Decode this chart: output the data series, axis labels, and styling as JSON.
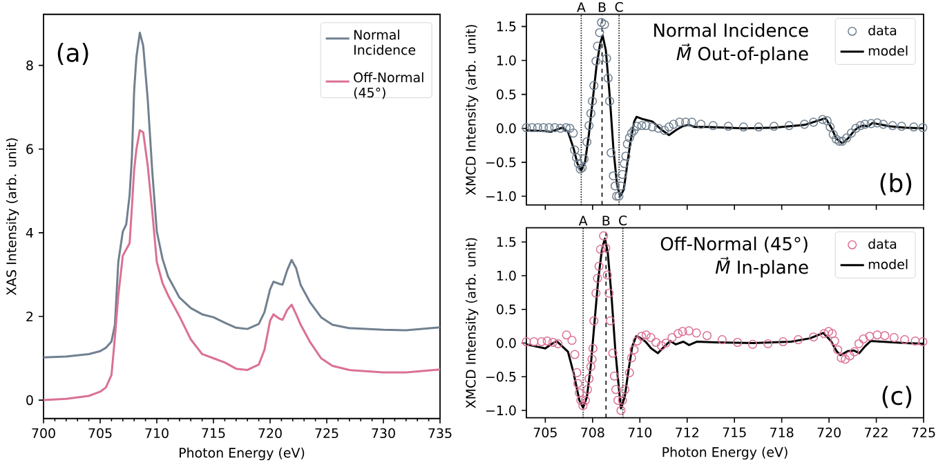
{
  "chart_data": [
    {
      "type": "line",
      "xlabel": "Photon Energy (eV)",
      "ylabel": "XAS Intensity (arb. unit)",
      "annotations": [
        "(a)"
      ],
      "x": [
        700,
        702,
        704,
        705,
        705.5,
        706,
        706.3,
        706.6,
        707,
        707.3,
        707.6,
        707.8,
        708,
        708.2,
        708.5,
        708.8,
        709.2,
        709.6,
        710,
        710.5,
        711,
        712,
        713,
        714,
        715,
        716,
        717,
        718,
        719,
        719.5,
        720,
        720.3,
        720.8,
        721.1,
        721.5,
        721.9,
        722.3,
        722.7,
        723.5,
        724.5,
        725.5,
        727,
        730,
        732,
        735
      ],
      "series": [
        {
          "name": "Normal Incidence",
          "color": "#708090",
          "values": [
            1.02,
            1.04,
            1.1,
            1.17,
            1.25,
            1.4,
            1.8,
            3.3,
            4.03,
            4.2,
            4.9,
            5.8,
            7.4,
            8.2,
            8.78,
            8.47,
            7.18,
            5.46,
            4.03,
            3.38,
            2.95,
            2.45,
            2.2,
            2.05,
            1.98,
            1.85,
            1.73,
            1.7,
            1.82,
            2.1,
            2.65,
            2.83,
            2.78,
            2.76,
            3.1,
            3.35,
            3.15,
            2.75,
            2.35,
            1.98,
            1.8,
            1.72,
            1.68,
            1.67,
            1.74
          ]
        },
        {
          "name": "Off-Normal (45°)",
          "color": "#db7093",
          "values": [
            0.0,
            0.03,
            0.1,
            0.2,
            0.3,
            0.6,
            1.5,
            2.5,
            3.45,
            3.6,
            3.75,
            4.6,
            5.5,
            6.0,
            6.45,
            6.4,
            5.6,
            4.5,
            3.3,
            2.8,
            2.5,
            2.0,
            1.45,
            1.1,
            1.0,
            0.9,
            0.75,
            0.72,
            0.85,
            1.2,
            1.9,
            2.05,
            1.95,
            1.92,
            2.15,
            2.28,
            2.05,
            1.8,
            1.4,
            1.0,
            0.82,
            0.72,
            0.66,
            0.66,
            0.73
          ]
        }
      ],
      "xlim": [
        700,
        735
      ],
      "xticks": [
        700,
        705,
        710,
        715,
        720,
        725,
        730,
        735
      ],
      "ylim": [
        -0.44,
        9.22
      ],
      "yticks": [
        0,
        2,
        4,
        6,
        8
      ],
      "legend": "top right"
    },
    {
      "type": "line",
      "title": "Normal Incidence",
      "subtitle": "*M⃗* Out-of-plane",
      "ylabel": "XMCD Intensity (arb. unit)",
      "annotations": [
        "(b)"
      ],
      "tick_labels": "y",
      "series": [
        {
          "name": "data",
          "type": "scatter",
          "marker": "circle",
          "color": "#708090",
          "x": [
            704.0,
            704.3,
            704.6,
            704.9,
            705.2,
            705.5,
            705.8,
            706.1,
            706.3,
            706.48,
            706.55,
            706.65,
            706.75,
            706.85,
            706.95,
            707.05,
            707.2,
            707.31,
            707.41,
            707.49,
            707.57,
            707.68,
            707.76,
            707.87,
            707.97,
            708.13,
            708.24,
            708.32,
            708.4,
            708.48,
            708.6,
            708.69,
            708.77,
            708.89,
            709.0,
            709.08,
            709.18,
            709.26,
            709.34,
            709.45,
            709.56,
            709.69,
            709.85,
            710.1,
            710.33,
            710.66,
            710.98,
            711.3,
            711.54,
            711.78,
            712.1,
            712.42,
            712.75,
            713.23,
            713.87,
            714.68,
            715.48,
            716.28,
            717.09,
            717.89,
            718.7,
            719.18,
            719.66,
            719.9,
            720.06,
            720.22,
            720.38,
            720.54,
            720.7,
            720.94,
            721.18,
            721.42,
            721.66,
            721.9,
            722.23,
            722.55,
            722.87,
            723.36,
            723.84,
            724.48,
            724.96
          ],
          "values": [
            0.01,
            0.01,
            0.01,
            0.01,
            0.01,
            0.01,
            0.0,
            0.01,
            0.0,
            -0.07,
            -0.32,
            -0.43,
            -0.52,
            -0.6,
            -0.58,
            -0.45,
            -0.2,
            0.04,
            0.22,
            0.4,
            0.63,
            0.99,
            1.21,
            1.41,
            1.56,
            1.53,
            1.03,
            0.74,
            0.4,
            -0.36,
            -0.7,
            -0.85,
            -1.0,
            -1.0,
            -0.85,
            -0.68,
            -0.52,
            -0.41,
            -0.23,
            -0.14,
            -0.07,
            -0.03,
            0.03,
            0.04,
            0.04,
            0.02,
            0.0,
            -0.03,
            0.02,
            0.06,
            0.09,
            0.09,
            0.09,
            0.06,
            0.04,
            0.03,
            0.02,
            0.02,
            0.03,
            0.04,
            0.06,
            0.09,
            0.13,
            0.11,
            0.02,
            -0.09,
            -0.16,
            -0.19,
            -0.19,
            -0.14,
            -0.07,
            0.0,
            0.04,
            0.06,
            0.07,
            0.08,
            0.06,
            0.04,
            0.03,
            0.02,
            0.01
          ]
        },
        {
          "name": "model",
          "type": "line",
          "marker": "none",
          "color": "#000000",
          "x": [
            704.0,
            705.0,
            705.3,
            705.6,
            705.9,
            706.2,
            706.5,
            706.7,
            706.9,
            707.1,
            707.3,
            707.5,
            707.7,
            707.9,
            708.03,
            708.2,
            708.4,
            708.6,
            708.8,
            708.97,
            709.15,
            709.3,
            709.5,
            709.7,
            709.83,
            710.1,
            710.66,
            711.14,
            711.54,
            711.94,
            712.26,
            712.6,
            712.9,
            713.55,
            715.5,
            717.1,
            718.7,
            719.5,
            719.82,
            720.14,
            720.38,
            720.7,
            721.0,
            721.35,
            721.58,
            721.82,
            722.07,
            722.3,
            722.63,
            723.2,
            724.0,
            725.0
          ],
          "values": [
            -0.03,
            -0.04,
            -0.05,
            -0.02,
            0.01,
            -0.05,
            -0.3,
            -0.52,
            -0.62,
            -0.5,
            -0.1,
            0.4,
            0.9,
            1.25,
            1.37,
            1.15,
            0.5,
            -0.3,
            -0.85,
            -1.0,
            -0.9,
            -0.6,
            -0.2,
            0.1,
            0.17,
            0.14,
            0.1,
            -0.02,
            -0.1,
            -0.02,
            0.03,
            0.05,
            0.02,
            0.02,
            0.0,
            0.01,
            0.05,
            0.12,
            0.15,
            0.0,
            -0.15,
            -0.22,
            -0.15,
            -0.03,
            0.02,
            0.04,
            0.03,
            0.08,
            0.06,
            0.03,
            0.01,
            0.0
          ]
        }
      ],
      "ref_lines": [
        {
          "axis": "x",
          "value": 706.9,
          "label": "A",
          "line_style": "dotted"
        },
        {
          "axis": "x",
          "value": 708.0,
          "label": "B",
          "line_style": "dashed"
        },
        {
          "axis": "x",
          "value": 708.9,
          "label": "C",
          "line_style": "dotted"
        }
      ],
      "xlim": [
        704,
        725
      ],
      "xticks": [
        705,
        707.5,
        710,
        712.5,
        715,
        717.5,
        720,
        722.5,
        725
      ],
      "ylim": [
        -1.13,
        1.68
      ],
      "yticks": [
        {
          "value": -1,
          "label": "−1.0"
        },
        {
          "value": -0.5,
          "label": "−0.5"
        },
        {
          "value": 0,
          "label": "0.0"
        },
        {
          "value": 0.5,
          "label": "0.5"
        },
        {
          "value": 1,
          "label": "1.0"
        },
        {
          "value": 1.5,
          "label": "1.5"
        }
      ],
      "legend": "top right"
    },
    {
      "type": "line",
      "title": "Off-Normal (45°)",
      "subtitle": "*M⃗* In-plane",
      "xlabel": "Photon Energy (eV)",
      "ylabel": "XMCD Intensity (arb. unit)",
      "annotations": [
        "(c)"
      ],
      "series": [
        {
          "name": "data",
          "type": "scatter",
          "marker": "circle",
          "color": "#db7093",
          "x": [
            704.0,
            704.4,
            704.8,
            705.1,
            705.4,
            705.67,
            706.12,
            706.41,
            706.56,
            706.67,
            706.72,
            706.8,
            706.88,
            706.99,
            707.12,
            707.23,
            707.31,
            707.41,
            707.47,
            707.52,
            707.57,
            707.68,
            707.76,
            707.84,
            707.92,
            708.08,
            708.2,
            708.28,
            708.37,
            708.44,
            708.57,
            708.65,
            708.73,
            708.84,
            709.0,
            709.08,
            709.21,
            709.45,
            709.56,
            709.69,
            709.85,
            710.09,
            710.33,
            710.58,
            710.85,
            711.14,
            711.38,
            711.7,
            712.02,
            712.26,
            712.59,
            712.99,
            713.55,
            714.35,
            715.16,
            715.96,
            716.77,
            717.57,
            718.37,
            719.18,
            719.74,
            719.98,
            720.17,
            720.3,
            720.46,
            720.65,
            720.86,
            721.1,
            721.34,
            721.58,
            721.82,
            722.15,
            722.55,
            722.95,
            723.44,
            724.0,
            724.56,
            724.96
          ],
          "values": [
            0.02,
            0.02,
            0.02,
            0.03,
            0.01,
            -0.01,
            0.12,
            0.04,
            -0.17,
            -0.44,
            -0.6,
            -0.74,
            -0.85,
            -0.93,
            -0.85,
            -0.69,
            -0.53,
            -0.35,
            -0.24,
            -0.08,
            0.33,
            0.74,
            0.96,
            1.14,
            1.39,
            1.59,
            1.41,
            1.01,
            0.74,
            0.33,
            -0.15,
            -0.49,
            -0.69,
            -0.85,
            -1.0,
            -0.85,
            -0.69,
            -0.44,
            -0.22,
            -0.1,
            0.03,
            0.1,
            0.12,
            0.08,
            0.01,
            -0.04,
            0.0,
            0.08,
            0.14,
            0.17,
            0.18,
            0.15,
            0.11,
            0.05,
            0.01,
            -0.02,
            -0.01,
            0.02,
            0.05,
            0.09,
            0.14,
            0.17,
            0.14,
            0.03,
            -0.1,
            -0.22,
            -0.24,
            -0.19,
            -0.13,
            -0.01,
            0.06,
            0.1,
            0.12,
            0.11,
            0.08,
            0.05,
            0.03,
            0.02
          ]
        },
        {
          "name": "model",
          "type": "line",
          "marker": "none",
          "color": "#000000",
          "x": [
            704.0,
            704.5,
            705.0,
            705.3,
            705.6,
            705.9,
            706.2,
            706.5,
            706.8,
            707.0,
            707.2,
            707.4,
            707.6,
            707.8,
            708.0,
            708.15,
            708.3,
            708.5,
            708.7,
            708.9,
            709.0,
            709.2,
            709.4,
            709.6,
            709.8,
            710.0,
            710.3,
            710.6,
            710.95,
            711.3,
            711.6,
            711.9,
            712.3,
            712.6,
            713.0,
            714.0,
            716.0,
            718.0,
            719.0,
            719.7,
            720.1,
            720.4,
            720.6,
            721.0,
            721.3,
            721.6,
            721.9,
            722.2,
            722.8,
            724.0,
            725.0
          ],
          "values": [
            -0.02,
            -0.05,
            -0.08,
            -0.02,
            0.03,
            -0.05,
            -0.13,
            -0.45,
            -0.85,
            -0.96,
            -0.8,
            -0.35,
            0.3,
            0.95,
            1.4,
            1.55,
            1.35,
            0.7,
            -0.1,
            -0.7,
            -0.97,
            -0.8,
            -0.4,
            -0.05,
            0.1,
            0.08,
            0.02,
            -0.08,
            -0.15,
            -0.05,
            0.03,
            -0.02,
            0.02,
            -0.03,
            0.02,
            0.01,
            0.0,
            0.02,
            0.07,
            0.15,
            0.03,
            -0.12,
            -0.18,
            -0.12,
            -0.11,
            -0.15,
            -0.05,
            0.03,
            0.02,
            0.0,
            -0.01
          ]
        }
      ],
      "ref_lines": [
        {
          "axis": "x",
          "value": 707.0,
          "label": "A",
          "line_style": "dotted"
        },
        {
          "axis": "x",
          "value": 708.21,
          "label": "B",
          "line_style": "dashed"
        },
        {
          "axis": "x",
          "value": 709.1,
          "label": "C",
          "line_style": "dotted"
        }
      ],
      "xlim": [
        704,
        725
      ],
      "xticks": [
        705,
        {
          "value": 707.5,
          "label": "708"
        },
        710,
        {
          "value": 712.5,
          "label": "712"
        },
        715,
        {
          "value": 717.5,
          "label": "718"
        },
        720,
        {
          "value": 722.5,
          "label": "722"
        },
        725
      ],
      "ylim": [
        -1.11,
        1.71
      ],
      "yticks": [
        {
          "value": -1,
          "label": "−1.0"
        },
        {
          "value": -0.5,
          "label": "−0.5"
        },
        {
          "value": 0,
          "label": "0.0"
        },
        {
          "value": 0.5,
          "label": "0.5"
        },
        {
          "value": 1,
          "label": "1.0"
        },
        {
          "value": 1.5,
          "label": "1.5"
        }
      ],
      "legend": "top right"
    }
  ]
}
